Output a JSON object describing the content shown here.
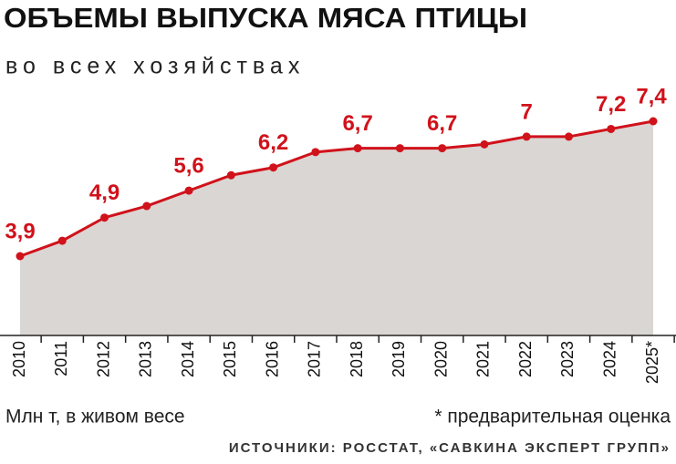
{
  "chart_data": {
    "type": "line",
    "title": "ОБЪЕМЫ ВЫПУСКА МЯСА ПТИЦЫ",
    "subtitle": "во всех хозяйствах",
    "categories": [
      "2010",
      "2011",
      "2012",
      "2013",
      "2014",
      "2015",
      "2016",
      "2017",
      "2018",
      "2019",
      "2020",
      "2021",
      "2022",
      "2023",
      "2024",
      "2025*"
    ],
    "values": [
      3.9,
      4.3,
      4.9,
      5.2,
      5.6,
      6.0,
      6.2,
      6.6,
      6.7,
      6.7,
      6.7,
      6.8,
      7.0,
      7.0,
      7.2,
      7.4
    ],
    "value_labels": [
      "3,9",
      null,
      "4,9",
      null,
      "5,6",
      null,
      "6,2",
      null,
      "6,7",
      null,
      "6,7",
      null,
      "7",
      null,
      "7,2",
      "7,4"
    ],
    "color": "#d0121b",
    "area_color": "#dad6d3",
    "unit_note": "Млн т, в живом весе",
    "footnote": "* предварительная оценка",
    "source": "ИСТОЧНИКИ: РОССТАТ, «САВКИНА ЭКСПЕРТ ГРУПП»"
  }
}
